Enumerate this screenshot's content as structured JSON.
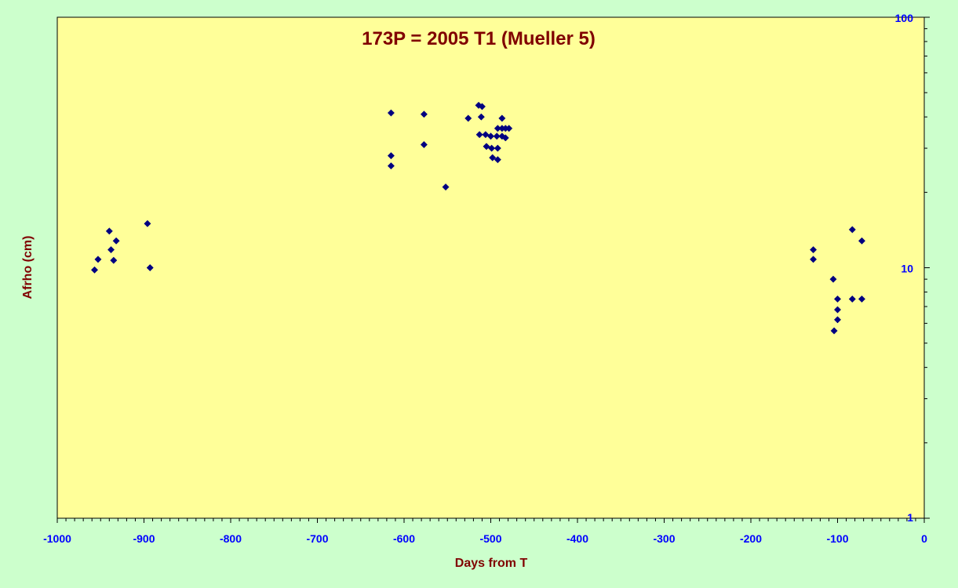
{
  "chart_data": {
    "type": "scatter",
    "title": "173P = 2005 T1 (Mueller 5)",
    "xlabel": "Days from T",
    "ylabel": "Afrho (cm)",
    "xlim": [
      -1000,
      0
    ],
    "ylim": [
      1,
      100
    ],
    "yscale": "log",
    "xticks": [
      -1000,
      -900,
      -800,
      -700,
      -600,
      -500,
      -400,
      -300,
      -200,
      -100,
      0
    ],
    "yticks": [
      1,
      10,
      100
    ],
    "grid": false,
    "legend": "none",
    "colors": {
      "background": "#ccffcc",
      "plot_area": "#ffff99",
      "marker": "#000080",
      "title": "#800000",
      "tick_labels": "#0000ff"
    },
    "series": [
      {
        "points": [
          {
            "x": -957,
            "y": 9.8
          },
          {
            "x": -953,
            "y": 10.8
          },
          {
            "x": -940,
            "y": 14.0
          },
          {
            "x": -938,
            "y": 11.8
          },
          {
            "x": -935,
            "y": 10.7
          },
          {
            "x": -932,
            "y": 12.8
          },
          {
            "x": -896,
            "y": 15.0
          },
          {
            "x": -893,
            "y": 10.0
          },
          {
            "x": -615,
            "y": 41.5
          },
          {
            "x": -615,
            "y": 28.0
          },
          {
            "x": -615,
            "y": 25.5
          },
          {
            "x": -577,
            "y": 41.0
          },
          {
            "x": -577,
            "y": 31.0
          },
          {
            "x": -552,
            "y": 21.0
          },
          {
            "x": -526,
            "y": 39.5
          },
          {
            "x": -514,
            "y": 44.5
          },
          {
            "x": -510,
            "y": 44.0
          },
          {
            "x": -511,
            "y": 40.0
          },
          {
            "x": -513,
            "y": 34.0
          },
          {
            "x": -506,
            "y": 34.0
          },
          {
            "x": -500,
            "y": 33.5
          },
          {
            "x": -493,
            "y": 33.5
          },
          {
            "x": -487,
            "y": 33.5
          },
          {
            "x": -483,
            "y": 33.0
          },
          {
            "x": -505,
            "y": 30.5
          },
          {
            "x": -499,
            "y": 30.0
          },
          {
            "x": -492,
            "y": 30.0
          },
          {
            "x": -498,
            "y": 27.5
          },
          {
            "x": -492,
            "y": 27.0
          },
          {
            "x": -492,
            "y": 36.0
          },
          {
            "x": -487,
            "y": 36.0
          },
          {
            "x": -483,
            "y": 36.0
          },
          {
            "x": -479,
            "y": 36.0
          },
          {
            "x": -487,
            "y": 39.5
          },
          {
            "x": -128,
            "y": 11.8
          },
          {
            "x": -128,
            "y": 10.8
          },
          {
            "x": -105,
            "y": 9.0
          },
          {
            "x": -100,
            "y": 7.5
          },
          {
            "x": -100,
            "y": 6.8
          },
          {
            "x": -100,
            "y": 6.2
          },
          {
            "x": -104,
            "y": 5.6
          },
          {
            "x": -83,
            "y": 14.2
          },
          {
            "x": -83,
            "y": 7.5
          },
          {
            "x": -72,
            "y": 12.8
          },
          {
            "x": -72,
            "y": 7.5
          }
        ]
      }
    ]
  }
}
